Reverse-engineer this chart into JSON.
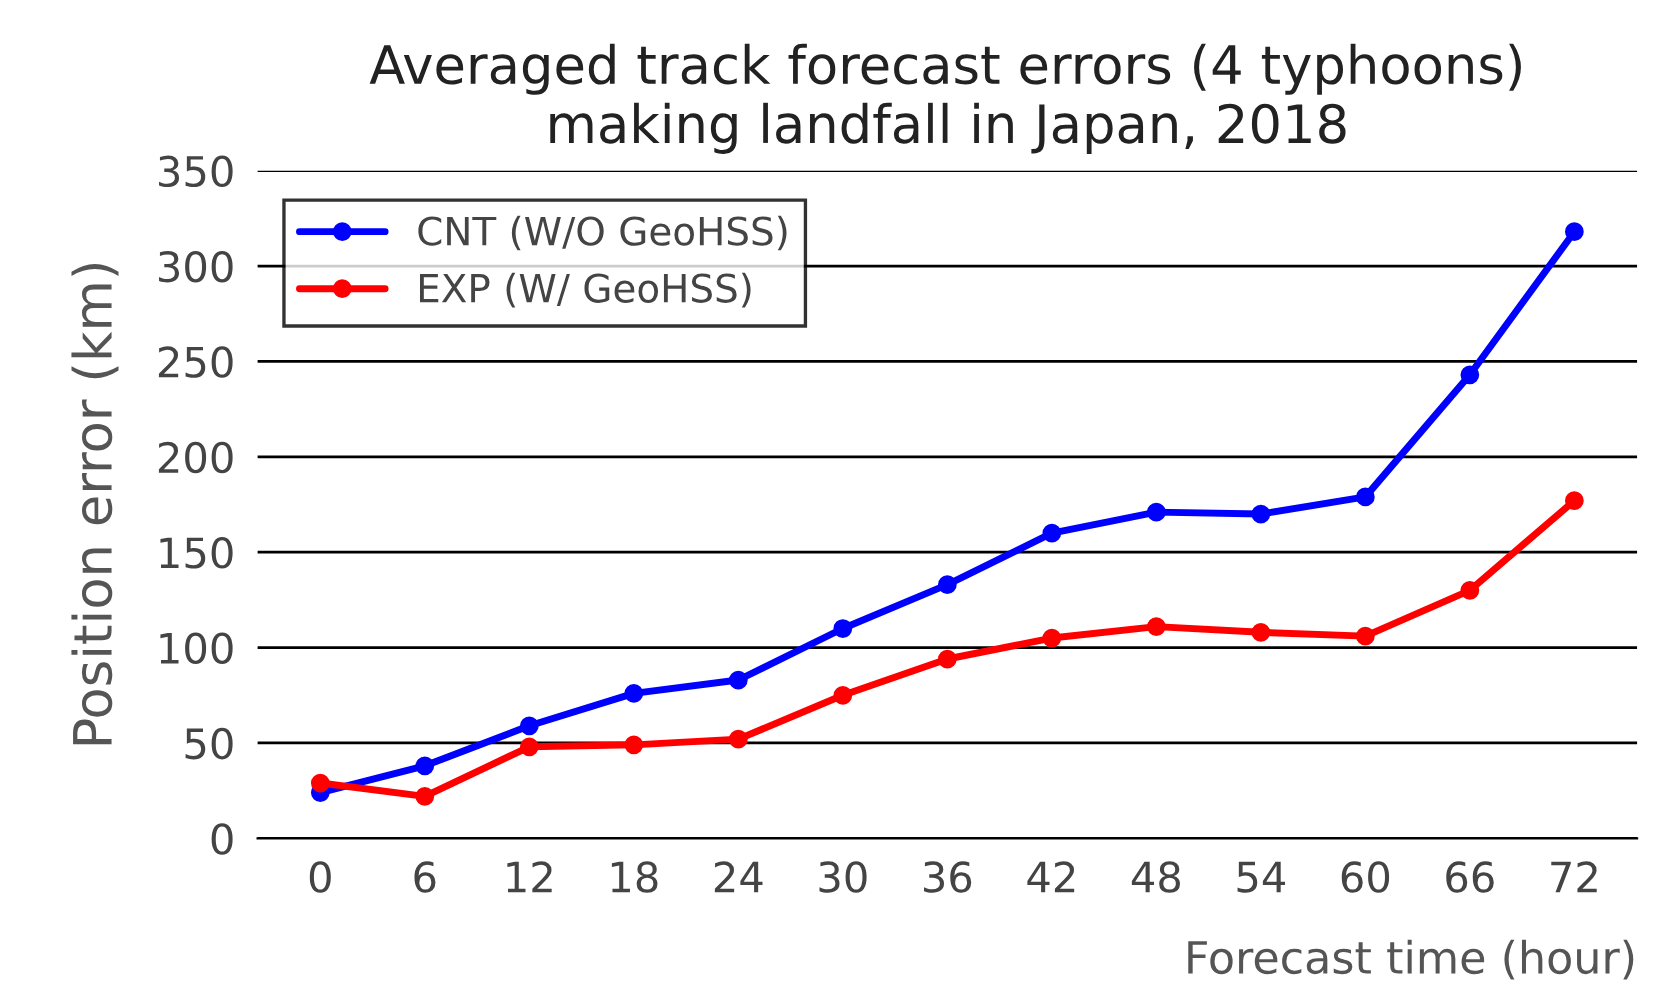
{
  "chart_data": {
    "type": "line",
    "title": "Averaged track forecast errors (4 typhoons)\nmaking landfall in Japan, 2018",
    "xlabel": "Forecast time (hour)",
    "ylabel": "Position error (km)",
    "categories": [
      "0",
      "6",
      "12",
      "18",
      "24",
      "30",
      "36",
      "42",
      "48",
      "54",
      "60",
      "66",
      "72"
    ],
    "series": [
      {
        "name": "CNT (W/O GeoHSS)",
        "color": "#0000ff",
        "values": [
          24,
          38,
          59,
          76,
          83,
          110,
          133,
          160,
          171,
          170,
          179,
          243,
          318
        ]
      },
      {
        "name": "EXP (W/ GeoHSS)",
        "color": "#ff0000",
        "values": [
          29,
          22,
          48,
          49,
          52,
          75,
          94,
          105,
          111,
          108,
          106,
          130,
          177
        ]
      }
    ],
    "ylim": [
      0,
      350
    ],
    "yticks": [
      0,
      50,
      100,
      150,
      200,
      250,
      300,
      350
    ],
    "grid": "y",
    "legend": "top left",
    "marker": "circle",
    "line_style": "solid"
  }
}
